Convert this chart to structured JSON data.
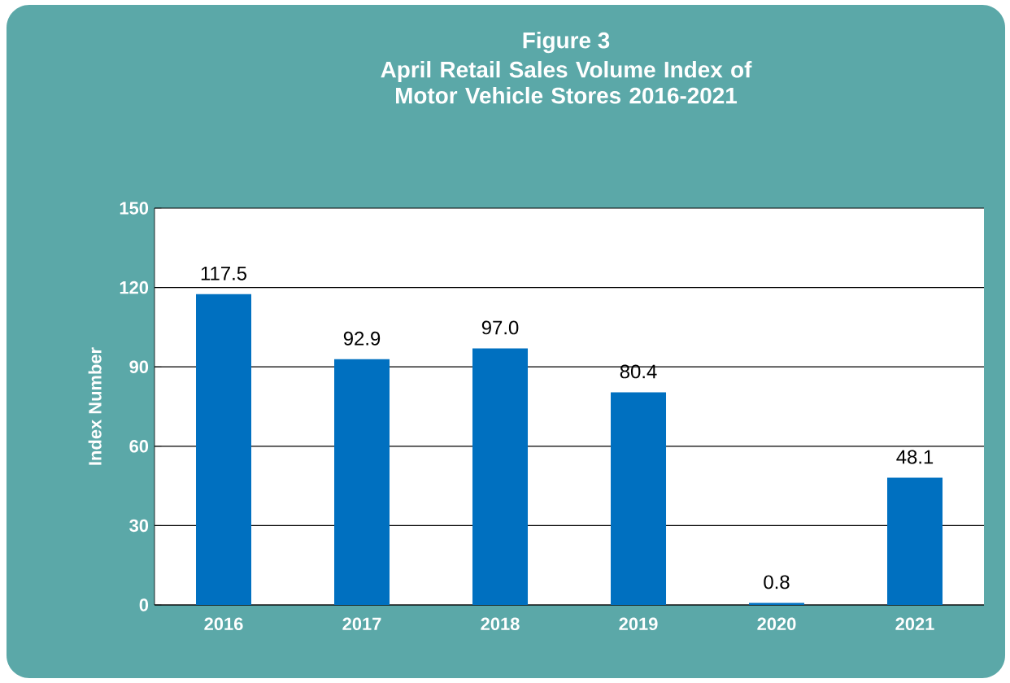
{
  "chart_data": {
    "type": "bar",
    "title": "Figure 3",
    "subtitle": "April Retail Sales Volume Index of Motor Vehicle Stores 2016-2021",
    "ylabel": "Index Number",
    "categories": [
      "2016",
      "2017",
      "2018",
      "2019",
      "2020",
      "2021"
    ],
    "values": [
      117.5,
      92.9,
      97.0,
      80.4,
      0.8,
      48.1
    ],
    "value_labels": [
      "117.5",
      "92.9",
      "97.0",
      "80.4",
      "0.8",
      "48.1"
    ],
    "color": "#0070c0",
    "ylim": [
      0,
      150
    ],
    "yticks": [
      0,
      30,
      60,
      90,
      120,
      150
    ],
    "grid": "y"
  }
}
